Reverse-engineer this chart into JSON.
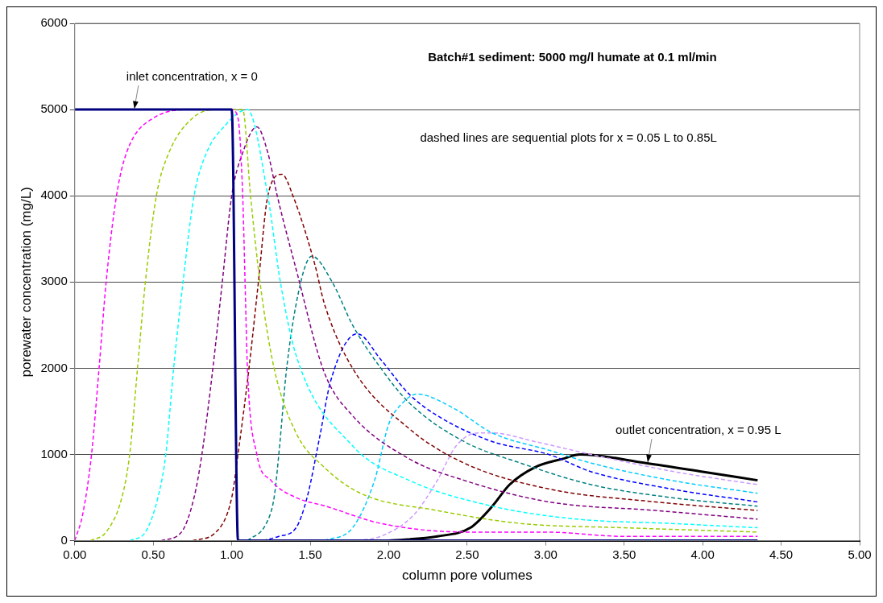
{
  "chart_data": {
    "type": "line",
    "title": "Batch#1 sediment: 5000 mg/l humate at 0.1 ml/min",
    "xlabel": "column pore volumes",
    "ylabel": "porewater concentration (mg/L)",
    "xlim": [
      0,
      5
    ],
    "xticks": [
      {
        "value": 0,
        "label": "0.00"
      },
      {
        "value": 0.5,
        "label": "0.50"
      },
      {
        "value": 1,
        "label": "1.00"
      },
      {
        "value": 1.5,
        "label": "1.50"
      },
      {
        "value": 2,
        "label": "2.00"
      },
      {
        "value": 2.5,
        "label": "2.50"
      },
      {
        "value": 3,
        "label": "3.00"
      },
      {
        "value": 3.5,
        "label": "3.50"
      },
      {
        "value": 4,
        "label": "4.00"
      },
      {
        "value": 4.5,
        "label": "4.50"
      },
      {
        "value": 5,
        "label": "5.00"
      }
    ],
    "ylim": [
      0,
      6000
    ],
    "yticks": [
      0,
      1000,
      2000,
      3000,
      4000,
      5000,
      6000
    ],
    "grid": "y",
    "legend": false,
    "marker": "none",
    "annotations": [
      {
        "text": "inlet concentration, x = 0",
        "x": 0.38,
        "y": 5000
      },
      "dashed lines are sequential plots for x = 0.05 L to 0.85L",
      {
        "text": "outlet concentration, x = 0.95 L",
        "x": 3.65,
        "y": 900
      }
    ],
    "series": [
      {
        "type": "line",
        "line_style": "solid",
        "color": "#000080",
        "x": [
          0,
          1.0,
          1.04,
          4.35
        ],
        "values": [
          5000,
          5000,
          0,
          0
        ]
      },
      {
        "type": "line",
        "line_style": "dashed",
        "color": "#ff00ff",
        "x": [
          0,
          0.05,
          0.107,
          0.155,
          0.2,
          0.266,
          0.33,
          0.5,
          0.75,
          1.0,
          1.04,
          1.07,
          1.085,
          1.1,
          1.16,
          1.25,
          1.41,
          1.6,
          1.95,
          2.5,
          3.0,
          3.5,
          4.0,
          4.35
        ],
        "values": [
          0,
          300,
          1000,
          2000,
          3000,
          4000,
          4500,
          4900,
          5000,
          5000,
          4900,
          4000,
          3000,
          2000,
          1000,
          700,
          500,
          400,
          200,
          100,
          100,
          50,
          50,
          50
        ]
      },
      {
        "type": "line",
        "line_style": "dashed",
        "color": "#99cc00",
        "x": [
          0.1,
          0.2,
          0.3,
          0.35,
          0.4,
          0.45,
          0.52,
          0.6,
          0.75,
          0.9,
          1.07,
          1.12,
          1.18,
          1.27,
          1.41,
          1.59,
          1.82,
          2.31,
          2.84,
          3.5,
          4.35
        ],
        "values": [
          0,
          100,
          500,
          1000,
          2000,
          3000,
          4000,
          4500,
          4900,
          5000,
          5000,
          4000,
          3000,
          2000,
          1250,
          850,
          550,
          350,
          200,
          150,
          100
        ]
      },
      {
        "type": "line",
        "line_style": "dashed",
        "color": "#00ffff",
        "x": [
          0.35,
          0.45,
          0.53,
          0.58,
          0.63,
          0.69,
          0.76,
          0.84,
          0.95,
          1.1,
          1.23,
          1.31,
          1.41,
          1.77,
          2.13,
          2.66,
          3.2,
          3.8,
          4.35
        ],
        "values": [
          0,
          100,
          500,
          1000,
          2000,
          3000,
          4000,
          4500,
          4800,
          5000,
          4000,
          3000,
          2150,
          1100,
          700,
          400,
          250,
          200,
          150
        ]
      },
      {
        "type": "line",
        "line_style": "dashed",
        "color": "#800080",
        "x": [
          0.55,
          0.68,
          0.76,
          0.81,
          0.88,
          0.94,
          1.0,
          1.07,
          1.16,
          1.23,
          1.29,
          1.41,
          1.59,
          1.77,
          2.13,
          2.48,
          3.02,
          3.7,
          4.35
        ],
        "values": [
          0,
          100,
          500,
          1000,
          2000,
          3000,
          4000,
          4500,
          4800,
          4500,
          4000,
          3150,
          1950,
          1450,
          950,
          700,
          450,
          350,
          250
        ]
      },
      {
        "type": "line",
        "line_style": "dashed",
        "color": "#800000",
        "x": [
          0.75,
          0.9,
          1.0,
          1.04,
          1.11,
          1.17,
          1.23,
          1.32,
          1.39,
          1.53,
          1.59,
          1.77,
          2.13,
          2.48,
          3.02,
          3.7,
          4.35
        ],
        "values": [
          0,
          100,
          500,
          1000,
          2000,
          3000,
          4000,
          4250,
          4000,
          3200,
          2750,
          2000,
          1300,
          900,
          600,
          450,
          350
        ]
      },
      {
        "type": "line",
        "line_style": "dashed",
        "color": "#008080",
        "x": [
          1.1,
          1.22,
          1.27,
          1.3,
          1.35,
          1.44,
          1.51,
          1.64,
          1.77,
          1.95,
          2.13,
          2.48,
          2.84,
          3.29,
          3.8,
          4.35
        ],
        "values": [
          0,
          200,
          500,
          1000,
          2000,
          3000,
          3300,
          3000,
          2500,
          2000,
          1600,
          1150,
          900,
          650,
          500,
          400
        ]
      },
      {
        "type": "line",
        "line_style": "dashed",
        "color": "#0000ff",
        "x": [
          1.2,
          1.3,
          1.41,
          1.48,
          1.56,
          1.63,
          1.8,
          1.95,
          2.13,
          2.31,
          2.66,
          3.02,
          3.29,
          3.8,
          4.35
        ],
        "values": [
          0,
          50,
          150,
          500,
          1200,
          1850,
          2400,
          2100,
          1700,
          1450,
          1150,
          1000,
          800,
          600,
          450
        ]
      },
      {
        "type": "line",
        "line_style": "dashed",
        "color": "#00ccff",
        "x": [
          1.59,
          1.77,
          1.91,
          2.0,
          2.09,
          2.18,
          2.4,
          2.66,
          3.02,
          3.29,
          3.8,
          4.35
        ],
        "values": [
          0,
          150,
          700,
          1350,
          1600,
          1700,
          1550,
          1250,
          1050,
          900,
          700,
          550
        ]
      },
      {
        "type": "line",
        "line_style": "dashed",
        "color": "#cc99ff",
        "x": [
          1.8,
          1.95,
          2.16,
          2.31,
          2.43,
          2.57,
          2.66,
          2.93,
          3.29,
          3.82,
          4.35
        ],
        "values": [
          0,
          50,
          300,
          700,
          1100,
          1250,
          1250,
          1150,
          1000,
          800,
          650
        ]
      },
      {
        "type": "line",
        "line_style": "solid",
        "color": "#000000",
        "x": [
          2.0,
          2.31,
          2.52,
          2.66,
          2.77,
          2.93,
          3.11,
          3.22,
          3.64,
          4.0,
          4.35
        ],
        "values": [
          0,
          50,
          150,
          400,
          650,
          850,
          950,
          1000,
          900,
          800,
          700
        ]
      }
    ]
  }
}
